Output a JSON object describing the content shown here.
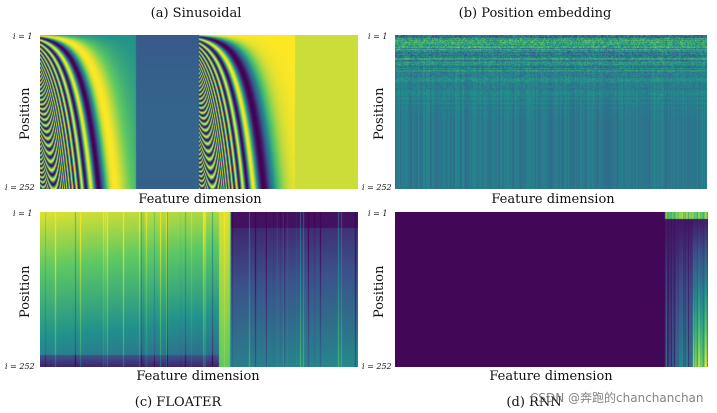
{
  "chart_data": [
    {
      "type": "heatmap",
      "title": "(a) Sinusoidal",
      "xlabel": "Feature dimension",
      "ylabel": "Position",
      "yticks": [
        "i = 1",
        "i = 252"
      ],
      "colormap": [
        "#440154",
        "#3b528b",
        "#21918c",
        "#5ec962",
        "#fde725"
      ]
    },
    {
      "type": "heatmap",
      "title": "(b) Position embedding",
      "xlabel": "Feature dimension",
      "ylabel": "Position",
      "yticks": [
        "i = 1",
        "i = 252"
      ],
      "colormap": [
        "#440154",
        "#3b528b",
        "#21918c",
        "#5ec962",
        "#fde725"
      ]
    },
    {
      "type": "heatmap",
      "title": "(c) FLOATER",
      "xlabel": "Feature dimension",
      "ylabel": "Position",
      "yticks": [
        "i = 1",
        "i = 252"
      ],
      "colormap": [
        "#440154",
        "#3b528b",
        "#21918c",
        "#5ec962",
        "#fde725"
      ]
    },
    {
      "type": "heatmap",
      "title": "(d) RNN",
      "xlabel": "Feature dimension",
      "ylabel": "Position",
      "yticks": [
        "i = 1",
        "i = 252"
      ],
      "colormap": [
        "#440154",
        "#3b528b",
        "#21918c",
        "#5ec962",
        "#fde725"
      ]
    }
  ],
  "watermark": "CSDN @奔跑的chanchanchan"
}
